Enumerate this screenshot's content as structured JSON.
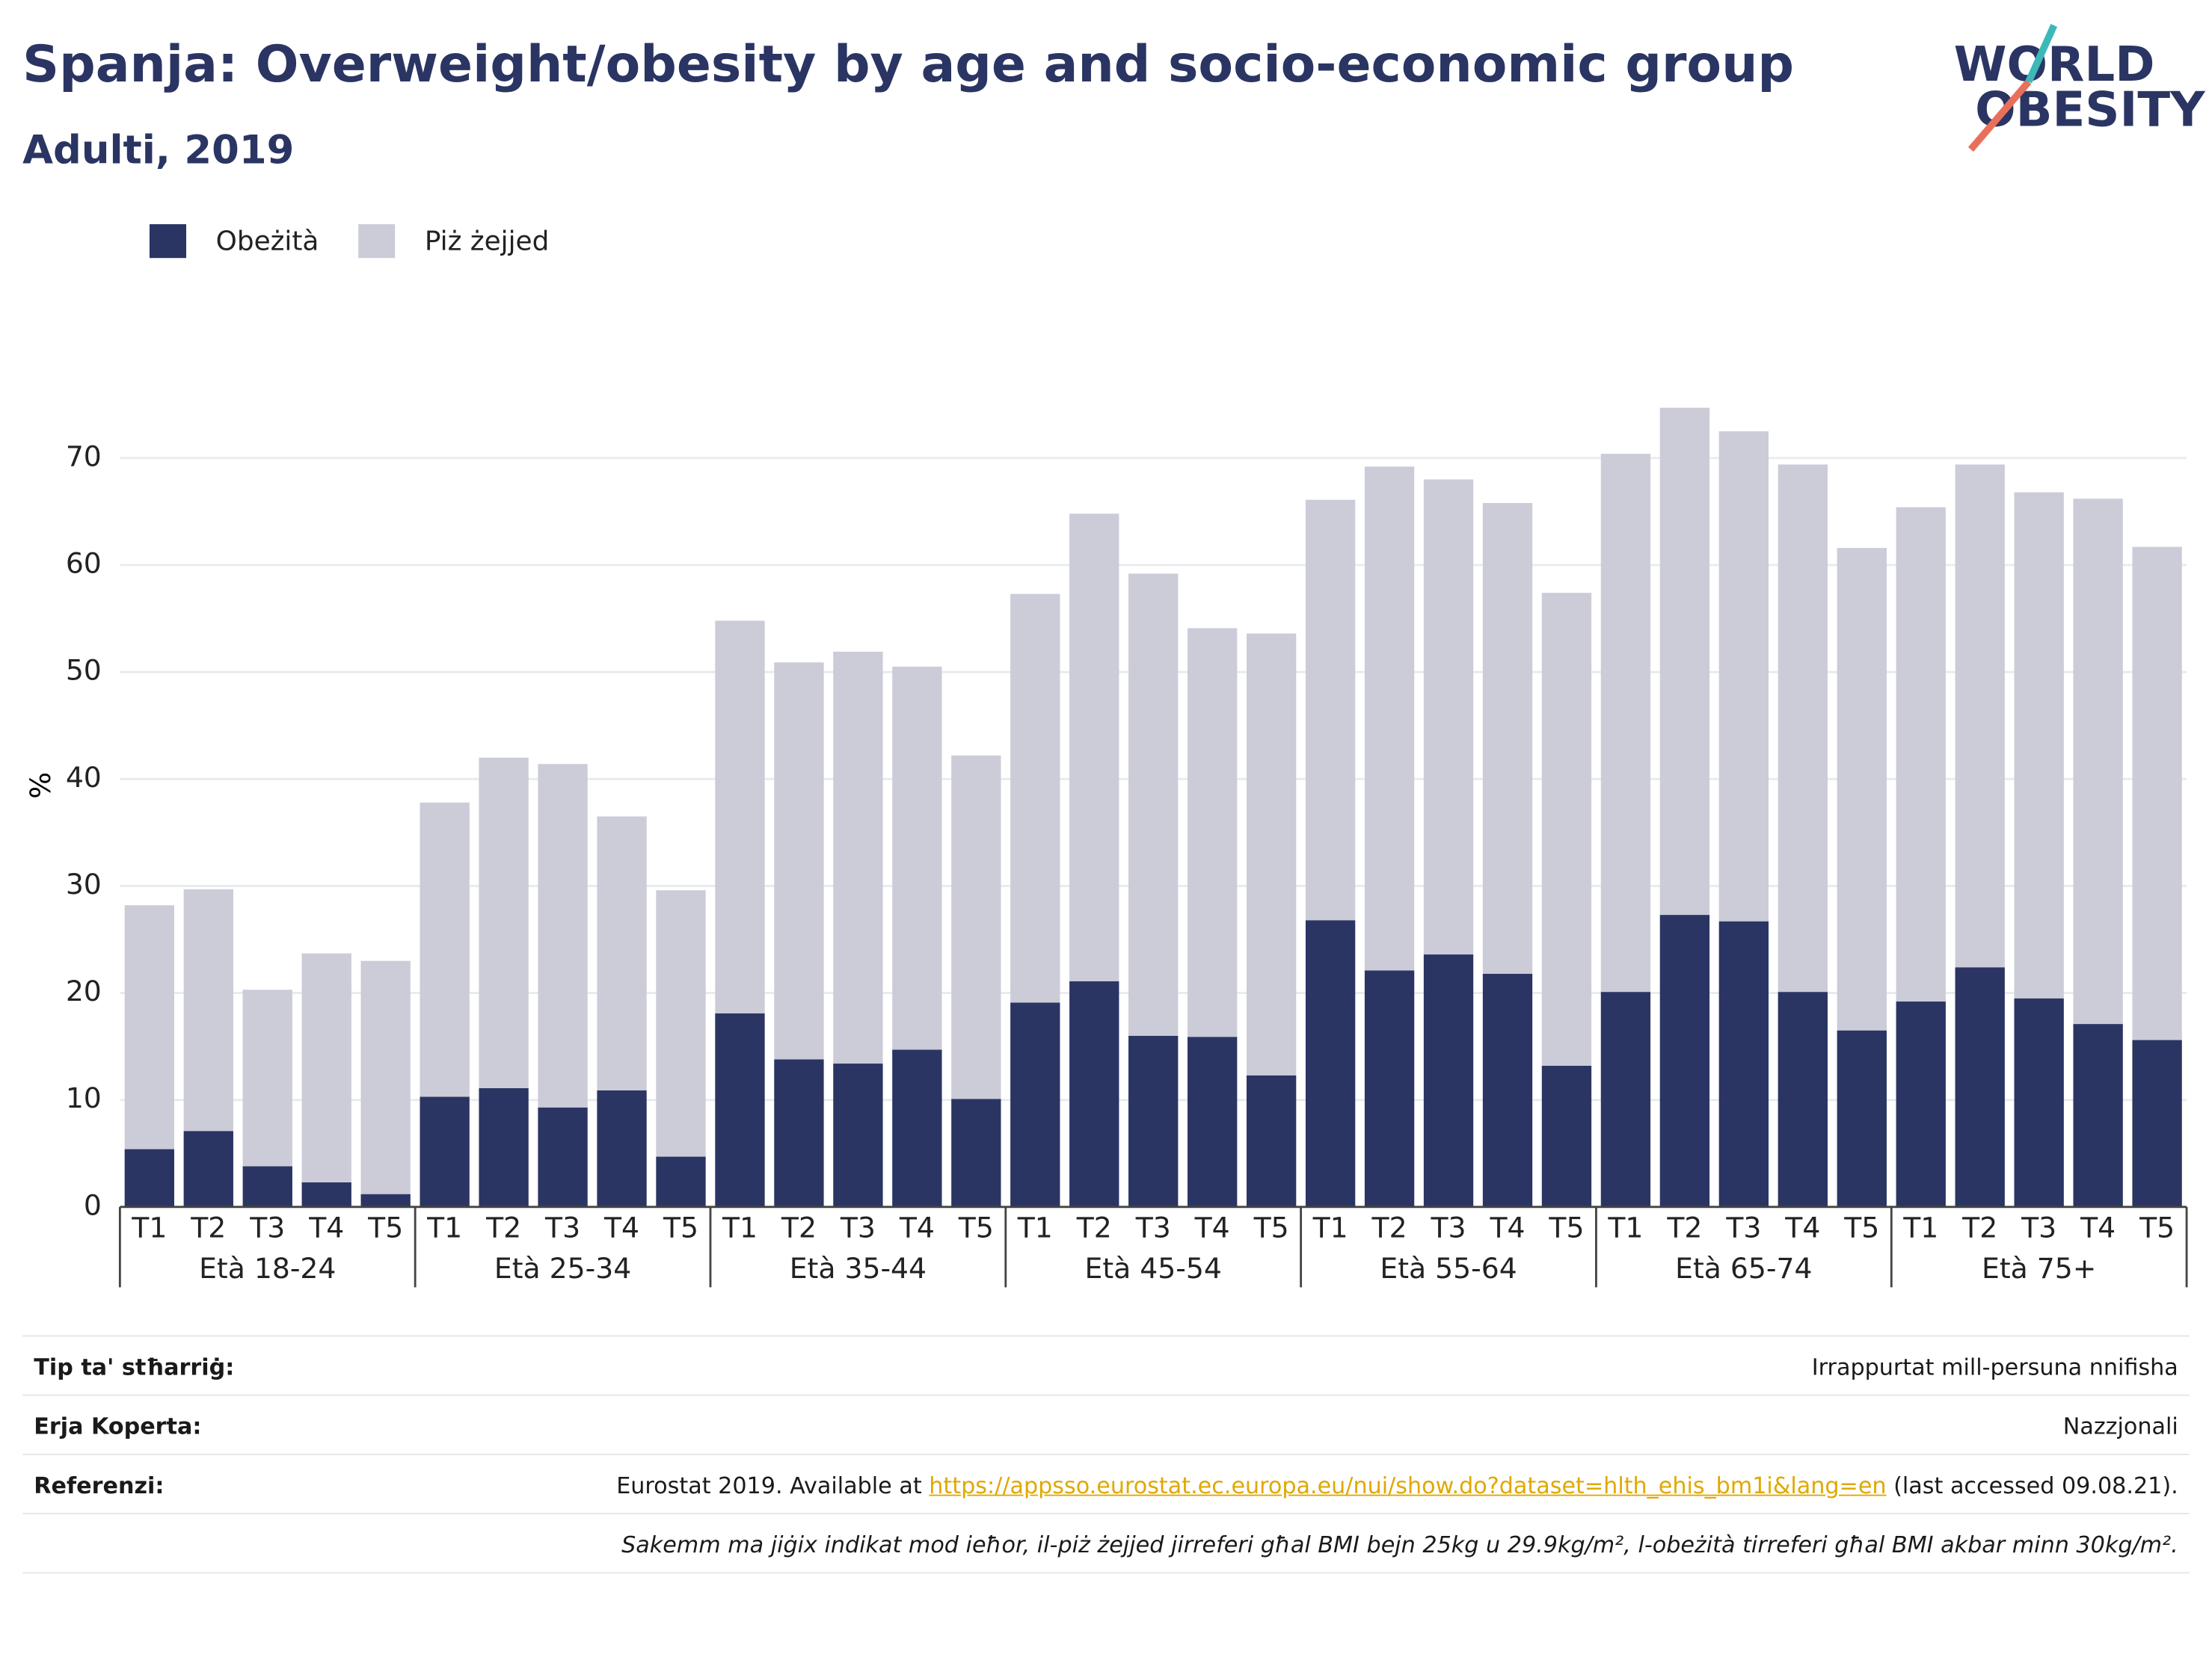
{
  "chart_data": {
    "type": "stacked_bar",
    "title": "Spanja: Overweight/obesity by age and socio-economic group",
    "subtitle": "Adulti, 2019",
    "y_label": "%",
    "groups": [
      "Età 18-24",
      "Età 25-34",
      "Età 35-44",
      "Età 45-54",
      "Età 55-64",
      "Età 65-74",
      "Età 75+"
    ],
    "categories": [
      "T1",
      "T2",
      "T3",
      "T4",
      "T5",
      "T1",
      "T2",
      "T3",
      "T4",
      "T5",
      "T1",
      "T2",
      "T3",
      "T4",
      "T5",
      "T1",
      "T2",
      "T3",
      "T4",
      "T5",
      "T1",
      "T2",
      "T3",
      "T4",
      "T5",
      "T1",
      "T2",
      "T3",
      "T4",
      "T5",
      "T1",
      "T2",
      "T3",
      "T4",
      "T5"
    ],
    "series": [
      {
        "name": "Obeżità",
        "color": "#2a3563",
        "values": [
          5.4,
          7.1,
          3.8,
          2.3,
          1.2,
          10.3,
          11.1,
          9.3,
          10.9,
          4.7,
          18.1,
          13.8,
          13.4,
          14.7,
          10.1,
          19.1,
          21.1,
          16.0,
          15.9,
          12.3,
          26.8,
          22.1,
          23.6,
          21.8,
          13.2,
          20.1,
          27.3,
          26.7,
          20.1,
          16.5,
          19.2,
          22.4,
          19.5,
          17.1,
          15.6
        ]
      },
      {
        "name": "Piż żejjed",
        "color": "#cbccd8",
        "values": [
          22.8,
          22.6,
          16.5,
          21.4,
          21.8,
          27.5,
          30.9,
          32.1,
          25.6,
          24.9,
          36.7,
          37.1,
          38.5,
          35.8,
          32.1,
          38.2,
          43.7,
          43.2,
          38.2,
          41.3,
          39.3,
          47.1,
          44.4,
          44.0,
          44.2,
          50.3,
          47.4,
          45.8,
          49.3,
          45.1,
          46.2,
          47.0,
          47.3,
          49.1,
          46.1
        ]
      }
    ],
    "ylim": [
      0,
      80
    ],
    "yticks": [
      0,
      10,
      20,
      30,
      40,
      50,
      60,
      70
    ],
    "grid": true,
    "legend": "top-left"
  },
  "logo": {
    "line1": "WORLD",
    "line2": "OBESITY"
  },
  "footer": {
    "rows": [
      {
        "label": "Tip ta' stħarriġ:",
        "value": "Irrappurtat mill-persuna nnifisha"
      },
      {
        "label": "Erja Koperta:",
        "value": "Nazzjonali"
      }
    ],
    "reference": {
      "label": "Referenzi:",
      "before": "Eurostat 2019. Available at",
      "link": "https://appsso.eurostat.ec.europa.eu/nui/show.do?dataset=hlth_ehis_bm1i&lang=en",
      "after": "(last accessed 09.08.21)."
    },
    "note": "Sakemm ma jiġix indikat mod ieħor, il-piż żejjed jirreferi għal BMI bejn 25kg u 29.9kg/m², l-obeżità tirreferi għal BMI akbar minn 30kg/m²."
  }
}
